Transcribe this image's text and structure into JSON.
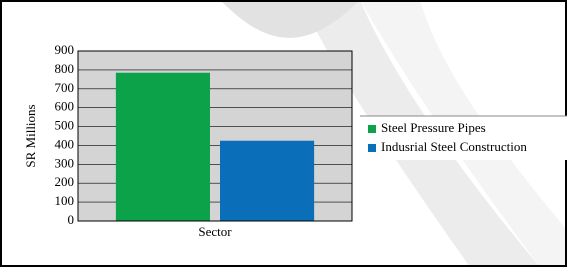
{
  "chart_data": {
    "type": "bar",
    "y_label": "SR Millions",
    "categories": [
      "Sector"
    ],
    "series": [
      {
        "name": "Steel Pressure Pipes",
        "color": "#0ca24a",
        "values": [
          785
        ]
      },
      {
        "name": "Indusrial Steel Construction",
        "color": "#0a6fb8",
        "values": [
          425
        ]
      }
    ],
    "ylim": [
      0,
      900
    ],
    "yticks": [
      0,
      100,
      200,
      300,
      400,
      500,
      600,
      700,
      800,
      900
    ],
    "grid": true,
    "legend": "right"
  }
}
